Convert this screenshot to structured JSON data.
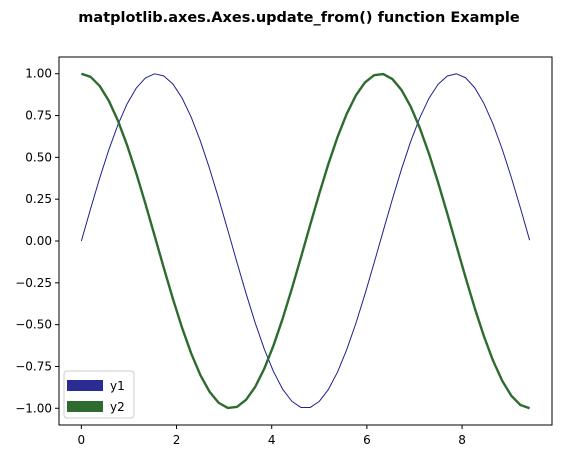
{
  "chart_data": {
    "type": "line",
    "title": "matplotlib.axes.Axes.update_from() function Example",
    "xlabel": "",
    "ylabel": "",
    "xlim": [
      -0.47,
      9.89
    ],
    "ylim": [
      -1.1,
      1.1
    ],
    "xticks": [
      0,
      2,
      4,
      6,
      8
    ],
    "xtick_labels": [
      "0",
      "2",
      "4",
      "6",
      "8"
    ],
    "yticks": [
      1.0,
      0.75,
      0.5,
      0.25,
      0.0,
      -0.25,
      -0.5,
      -0.75,
      -1.0
    ],
    "ytick_labels": [
      "1.00",
      "0.75",
      "0.50",
      "0.25",
      "0.00",
      "−0.25",
      "−0.50",
      "−0.75",
      "−1.00"
    ],
    "grid": false,
    "legend_position": "lower-left",
    "series": [
      {
        "name": "y1",
        "color": "#1f1f8f",
        "function": "sin",
        "x_start": 0,
        "x_end": 9.42,
        "points": 50
      },
      {
        "name": "y2",
        "color": "#2e6b2e",
        "function": "cos",
        "x_start": 0,
        "x_end": 9.42,
        "points": 50
      }
    ],
    "legend": [
      {
        "label": "y1",
        "color": "#2b2b94"
      },
      {
        "label": "y2",
        "color": "#2e6b2e"
      }
    ]
  }
}
